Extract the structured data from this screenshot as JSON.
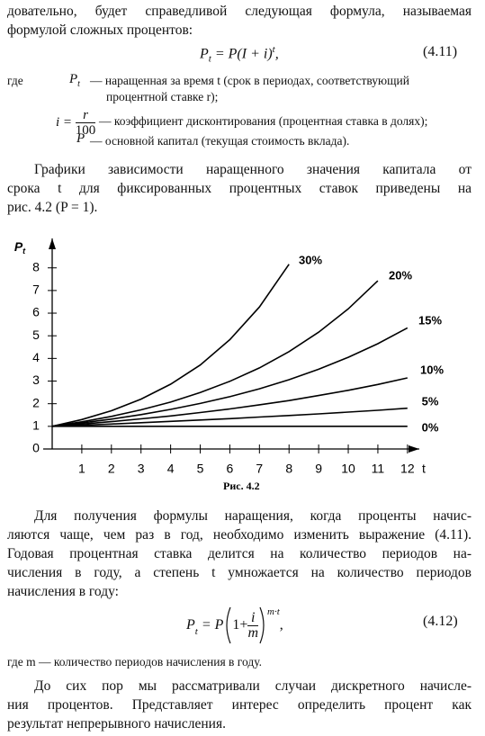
{
  "paragraph_0": [
    "довательно, будет справедливой следующая формула, называемая",
    "формулой сложных процентов:"
  ],
  "formula_1": {
    "lhs": "P",
    "lhs_sub": "t",
    "rhs": "= P(I + i)",
    "power": "t",
    "end": ",",
    "number": "(4.11)"
  },
  "definitions": {
    "where": "где",
    "items": [
      {
        "symbol": "P",
        "symbol_sub": "t",
        "lines": [
          "— наращенная за время t (срок в периодах, соответствующий",
          "процентной ставке r);"
        ]
      },
      {
        "symbol": "i =",
        "numerator": "r",
        "denominator": "100",
        "lines": [
          "— коэффициент дисконтирования (процентная ставка в долях);"
        ]
      },
      {
        "symbol": "P",
        "lines": [
          "— основной капитал (текущая стоимость вклада)."
        ]
      }
    ]
  },
  "paragraph_1": [
    "Графики зависимости наращенного значения капитала от",
    "срока t для фиксированных процентных ставок приведены на",
    "рис. 4.2 (P = 1)."
  ],
  "chart_data": {
    "type": "line",
    "caption": "Рис. 4.2",
    "y_label": "P",
    "y_label_sub": "t",
    "x_label": "t",
    "x": [
      0,
      1,
      2,
      3,
      4,
      5,
      6,
      7,
      8,
      9,
      10,
      11,
      12
    ],
    "xlim": [
      0,
      12.4
    ],
    "ylim": [
      0,
      9.3
    ],
    "xticks": [
      1,
      2,
      3,
      4,
      5,
      6,
      7,
      8,
      9,
      10,
      11,
      12
    ],
    "yticks": [
      0,
      1,
      2,
      3,
      4,
      5,
      6,
      7,
      8
    ],
    "series": [
      {
        "name": "30%",
        "color": "#000000",
        "values": [
          1,
          1.3,
          1.69,
          2.2,
          2.86,
          3.71,
          4.83,
          6.27,
          8.16,
          null,
          null,
          null,
          null
        ]
      },
      {
        "name": "20%",
        "color": "#000000",
        "values": [
          1,
          1.2,
          1.44,
          1.73,
          2.07,
          2.49,
          2.99,
          3.58,
          4.3,
          5.16,
          6.19,
          7.43,
          null
        ]
      },
      {
        "name": "15%",
        "color": "#000000",
        "values": [
          1,
          1.15,
          1.32,
          1.52,
          1.75,
          2.01,
          2.31,
          2.66,
          3.06,
          3.52,
          4.05,
          4.65,
          5.35
        ]
      },
      {
        "name": "10%",
        "color": "#000000",
        "values": [
          1,
          1.1,
          1.21,
          1.33,
          1.46,
          1.61,
          1.77,
          1.95,
          2.14,
          2.36,
          2.59,
          2.85,
          3.14
        ]
      },
      {
        "name": "5%",
        "color": "#000000",
        "values": [
          1,
          1.05,
          1.1,
          1.16,
          1.22,
          1.28,
          1.34,
          1.41,
          1.48,
          1.55,
          1.63,
          1.71,
          1.8
        ]
      },
      {
        "name": "0%",
        "color": "#000000",
        "values": [
          1,
          1,
          1,
          1,
          1,
          1,
          1,
          1,
          1,
          1,
          1,
          1,
          1
        ]
      }
    ]
  },
  "paragraph_2": [
    "Для получения формулы наращения, когда проценты начис-",
    "ляются чаще, чем раз в год, необходимо изменить выражение (4.11).",
    "Годовая процентная ставка делится на количество периодов на-",
    "числения в году, а степень t умножается на количество периодов",
    "начисления в году:"
  ],
  "formula_2": {
    "lhs": "P",
    "lhs_sub": "t",
    "rhs": "= P",
    "inner": "1+",
    "numerator": "i",
    "denominator": "m",
    "power": "m·t",
    "end": ",",
    "number": "(4.12)"
  },
  "where_2": "где m — количество периодов начисления в году.",
  "paragraph_3": [
    "До сих пор мы рассматривали случаи дискретного начисле-",
    "ния процентов. Представляет интерес определить процент как",
    "результат непрерывного начисления."
  ]
}
